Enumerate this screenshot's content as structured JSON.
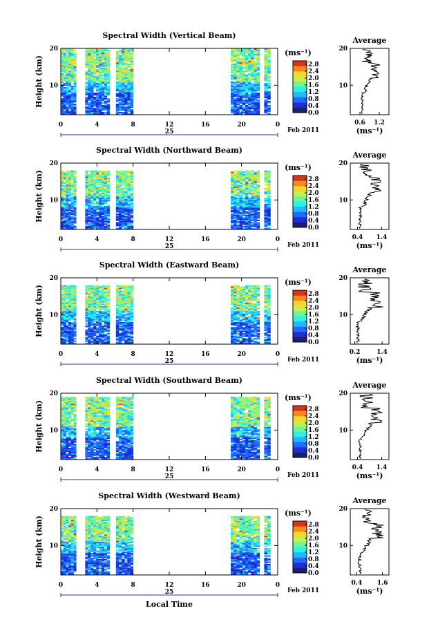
{
  "figure": {
    "xlabel": "Local Time",
    "date_suffix": "Feb 2011",
    "day_label": "25",
    "colorbar_unit": "(ms⁻¹)",
    "avg_title": "Average",
    "avg_xlabel": "(ms⁻¹)",
    "ylabel": "Height (km)"
  },
  "colors": {
    "colormap": [
      "#1b1f6e",
      "#1e2fd6",
      "#1f6cff",
      "#22b8ff",
      "#28f2e6",
      "#6cf59a",
      "#c6f04a",
      "#f7d52a",
      "#f48a1c",
      "#d8341a"
    ],
    "date_axis": "#2a3a8c"
  },
  "chart_data": [
    {
      "type": "heatmap",
      "title": "Spectral Width (Vertical Beam)",
      "xlabel": "Local Time",
      "ylabel": "Height (km)",
      "xlim": [
        0,
        24
      ],
      "ylim": [
        2,
        20
      ],
      "xticks": [
        "0",
        "4",
        "8",
        "12",
        "16",
        "20",
        "0"
      ],
      "yticks": [
        "10",
        "20"
      ],
      "colorbar": {
        "unit": "(ms⁻¹)",
        "ticks": [
          "0.0",
          "0.4",
          "0.8",
          "1.2",
          "1.6",
          "2.0",
          "2.4",
          "2.8"
        ],
        "range": [
          0,
          3.0
        ]
      },
      "data_blocks": [
        [
          0,
          1.7
        ],
        [
          2.7,
          5.4
        ],
        [
          6.1,
          8.0
        ],
        [
          18.8,
          22.0
        ],
        [
          22.5,
          23.2
        ]
      ],
      "data_top_km": 20,
      "average_profile": {
        "title": "Average",
        "xticks": [
          "0.6",
          "1.2"
        ],
        "xlim": [
          0.3,
          1.5
        ],
        "yticks": [
          "10",
          "20"
        ],
        "ylim": [
          2,
          20
        ],
        "xlabel": "(ms⁻¹)"
      }
    },
    {
      "type": "heatmap",
      "title": "Spectral Width (Northward Beam)",
      "xlabel": "Local Time",
      "ylabel": "Height (km)",
      "xlim": [
        0,
        24
      ],
      "ylim": [
        2,
        20
      ],
      "xticks": [
        "0",
        "4",
        "8",
        "12",
        "16",
        "20",
        "0"
      ],
      "yticks": [
        "10",
        "20"
      ],
      "colorbar": {
        "unit": "(ms⁻¹)",
        "ticks": [
          "0.0",
          "0.4",
          "0.8",
          "1.2",
          "1.6",
          "2.0",
          "2.4",
          "2.8"
        ],
        "range": [
          0,
          3.0
        ]
      },
      "data_blocks": [
        [
          0,
          1.7
        ],
        [
          2.7,
          5.4
        ],
        [
          6.1,
          8.0
        ],
        [
          18.8,
          22.0
        ],
        [
          22.5,
          23.2
        ]
      ],
      "data_top_km": 18,
      "average_profile": {
        "title": "Average",
        "xticks": [
          "0.4",
          "1.4"
        ],
        "xlim": [
          0.1,
          1.7
        ],
        "yticks": [
          "10",
          "20"
        ],
        "ylim": [
          2,
          20
        ],
        "xlabel": "(ms⁻¹)"
      }
    },
    {
      "type": "heatmap",
      "title": "Spectral Width (Eastward Beam)",
      "xlabel": "Local Time",
      "ylabel": "Height (km)",
      "xlim": [
        0,
        24
      ],
      "ylim": [
        2,
        20
      ],
      "xticks": [
        "0",
        "4",
        "8",
        "12",
        "16",
        "20",
        "0"
      ],
      "yticks": [
        "10",
        "20"
      ],
      "colorbar": {
        "unit": "(ms⁻¹)",
        "ticks": [
          "0.0",
          "0.4",
          "0.8",
          "1.2",
          "1.6",
          "2.0",
          "2.4",
          "2.8"
        ],
        "range": [
          0,
          3.0
        ]
      },
      "data_blocks": [
        [
          0,
          1.7
        ],
        [
          2.7,
          5.4
        ],
        [
          6.1,
          8.0
        ],
        [
          18.8,
          22.0
        ],
        [
          22.5,
          23.2
        ]
      ],
      "data_top_km": 18,
      "average_profile": {
        "title": "Average",
        "xticks": [
          "0.2",
          "1.4"
        ],
        "xlim": [
          0.0,
          1.7
        ],
        "yticks": [
          "10",
          "20"
        ],
        "ylim": [
          2,
          20
        ],
        "xlabel": "(ms⁻¹)"
      }
    },
    {
      "type": "heatmap",
      "title": "Spectral Width (Southward Beam)",
      "xlabel": "Local Time",
      "ylabel": "Height (km)",
      "xlim": [
        0,
        24
      ],
      "ylim": [
        2,
        20
      ],
      "xticks": [
        "0",
        "4",
        "8",
        "12",
        "16",
        "20",
        "0"
      ],
      "yticks": [
        "10",
        "20"
      ],
      "colorbar": {
        "unit": "(ms⁻¹)",
        "ticks": [
          "0.0",
          "0.4",
          "0.8",
          "1.2",
          "1.6",
          "2.0",
          "2.4",
          "2.8"
        ],
        "range": [
          0,
          3.0
        ]
      },
      "data_blocks": [
        [
          0,
          1.7
        ],
        [
          2.7,
          5.4
        ],
        [
          6.1,
          8.0
        ],
        [
          18.8,
          22.0
        ],
        [
          22.5,
          23.2
        ]
      ],
      "data_top_km": 19,
      "average_profile": {
        "title": "Average",
        "xticks": [
          "0.4",
          "1.4"
        ],
        "xlim": [
          0.1,
          1.7
        ],
        "yticks": [
          "10",
          "20"
        ],
        "ylim": [
          2,
          20
        ],
        "xlabel": "(ms⁻¹)"
      }
    },
    {
      "type": "heatmap",
      "title": "Spectral Width (Westward Beam)",
      "xlabel": "Local Time",
      "ylabel": "Height (km)",
      "xlim": [
        0,
        24
      ],
      "ylim": [
        2,
        20
      ],
      "xticks": [
        "0",
        "4",
        "8",
        "12",
        "16",
        "20",
        "0"
      ],
      "yticks": [
        "10",
        "20"
      ],
      "colorbar": {
        "unit": "(ms⁻¹)",
        "ticks": [
          "0.0",
          "0.4",
          "0.8",
          "1.2",
          "1.6",
          "2.0",
          "2.4",
          "2.8"
        ],
        "range": [
          0,
          3.0
        ]
      },
      "data_blocks": [
        [
          0,
          1.7
        ],
        [
          2.7,
          5.4
        ],
        [
          6.1,
          8.0
        ],
        [
          18.8,
          22.0
        ],
        [
          22.5,
          23.2
        ]
      ],
      "data_top_km": 18,
      "average_profile": {
        "title": "Average",
        "xticks": [
          "0.4",
          "1.6"
        ],
        "xlim": [
          0.1,
          1.9
        ],
        "yticks": [
          "10",
          "20"
        ],
        "ylim": [
          2,
          20
        ],
        "xlabel": "(ms⁻¹)"
      }
    }
  ]
}
